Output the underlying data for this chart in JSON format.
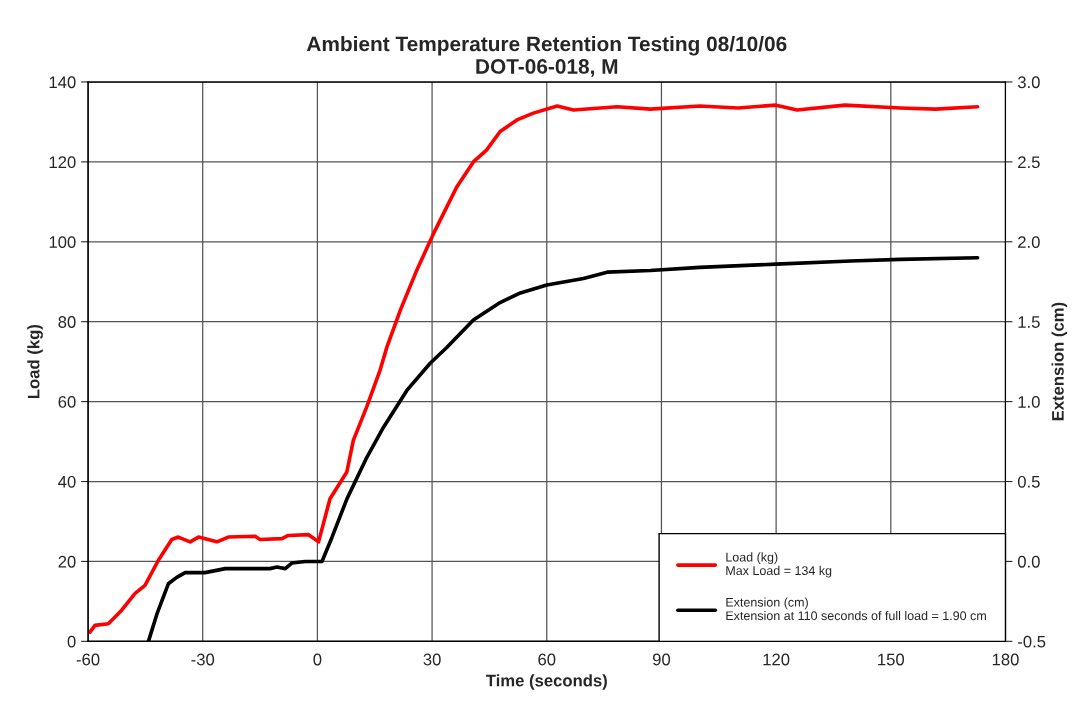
{
  "chart_data": {
    "type": "line",
    "title": "Ambient Temperature Retention Testing 08/10/06\nDOT-06-018, M",
    "xlabel": "Time (seconds)",
    "ylabel": "Load (kg)",
    "y2label": "Extension (cm)",
    "xlim": [
      -60,
      180
    ],
    "xticks": [
      -60,
      -30,
      0,
      30,
      60,
      90,
      120,
      150,
      180
    ],
    "ylim": [
      0,
      140
    ],
    "yticks": [
      0,
      20,
      40,
      60,
      80,
      100,
      120,
      140
    ],
    "y2lim": [
      -0.5,
      3.0
    ],
    "y2ticks": [
      {
        "value": -0.5,
        "label": "-0.5"
      },
      {
        "value": 0,
        "label": "0.0"
      },
      {
        "value": 0.5,
        "label": "0.5"
      },
      {
        "value": 1,
        "label": "1.0"
      },
      {
        "value": 1.5,
        "label": "1.5"
      },
      {
        "value": 2,
        "label": "2.0"
      },
      {
        "value": 2.5,
        "label": "2.5"
      },
      {
        "value": 3,
        "label": "3.0"
      }
    ],
    "grid": true,
    "legend": "bottom right",
    "marker": "none",
    "line_style": "solid",
    "series": [
      {
        "name": "Load (kg)\nMax Load = 134 kg",
        "color": "#ff0000",
        "x": [
          -59.5,
          -58.2,
          -54.7,
          -51.2,
          -47.7,
          -45.1,
          -41.6,
          -38.1,
          -36.4,
          -33.3,
          -31.1,
          -26.3,
          -23.3,
          -16.3,
          -15.0,
          -9.3,
          -7.6,
          -2.3,
          0.3,
          3.3,
          7.7,
          9.4,
          12.9,
          16.4,
          18.2,
          21.7,
          26.0,
          30.4,
          36.5,
          40.8,
          44.3,
          47.8,
          52.2,
          56.5,
          62.7,
          67.0,
          78.4,
          87.1,
          100,
          110,
          120,
          125.5,
          138,
          152.5,
          161.7,
          172.7
        ],
        "values": [
          2.3,
          4.0,
          4.4,
          7.8,
          12.0,
          14.0,
          20.3,
          25.5,
          26.1,
          24.9,
          26.1,
          24.9,
          26.1,
          26.3,
          25.5,
          25.7,
          26.5,
          26.7,
          24.9,
          35.7,
          42.4,
          50.3,
          58.7,
          67.9,
          73.7,
          82.9,
          92.9,
          102.1,
          113.8,
          120.0,
          123.0,
          127.6,
          130.5,
          132.2,
          134.0,
          133.0,
          133.8,
          133.2,
          134.0,
          133.5,
          134.2,
          133.0,
          134.2,
          133.5,
          133.2,
          133.8
        ]
      },
      {
        "name": "Extension (cm)\nExtension at 110 seconds of full load = 1.90 cm",
        "color": "#000000",
        "axis": "y2",
        "x": [
          -44.2,
          -42.0,
          -39.0,
          -36.8,
          -34.6,
          -29.4,
          -24.1,
          -12.4,
          -10.6,
          -8.4,
          -6.7,
          -3.2,
          1.2,
          3.8,
          7.7,
          12.9,
          17.3,
          23.4,
          29.5,
          33.9,
          40.8,
          47.8,
          53.1,
          60.0,
          69.6,
          75.8,
          87.1,
          100,
          120,
          139.5,
          152.5,
          172.7
        ],
        "values": [
          -0.5,
          -0.33,
          -0.14,
          -0.1,
          -0.07,
          -0.07,
          -0.045,
          -0.045,
          -0.035,
          -0.045,
          -0.01,
          0.0,
          0.0,
          0.15,
          0.39,
          0.65,
          0.84,
          1.07,
          1.24,
          1.34,
          1.51,
          1.62,
          1.68,
          1.73,
          1.77,
          1.81,
          1.82,
          1.84,
          1.86,
          1.88,
          1.89,
          1.9
        ]
      }
    ]
  }
}
